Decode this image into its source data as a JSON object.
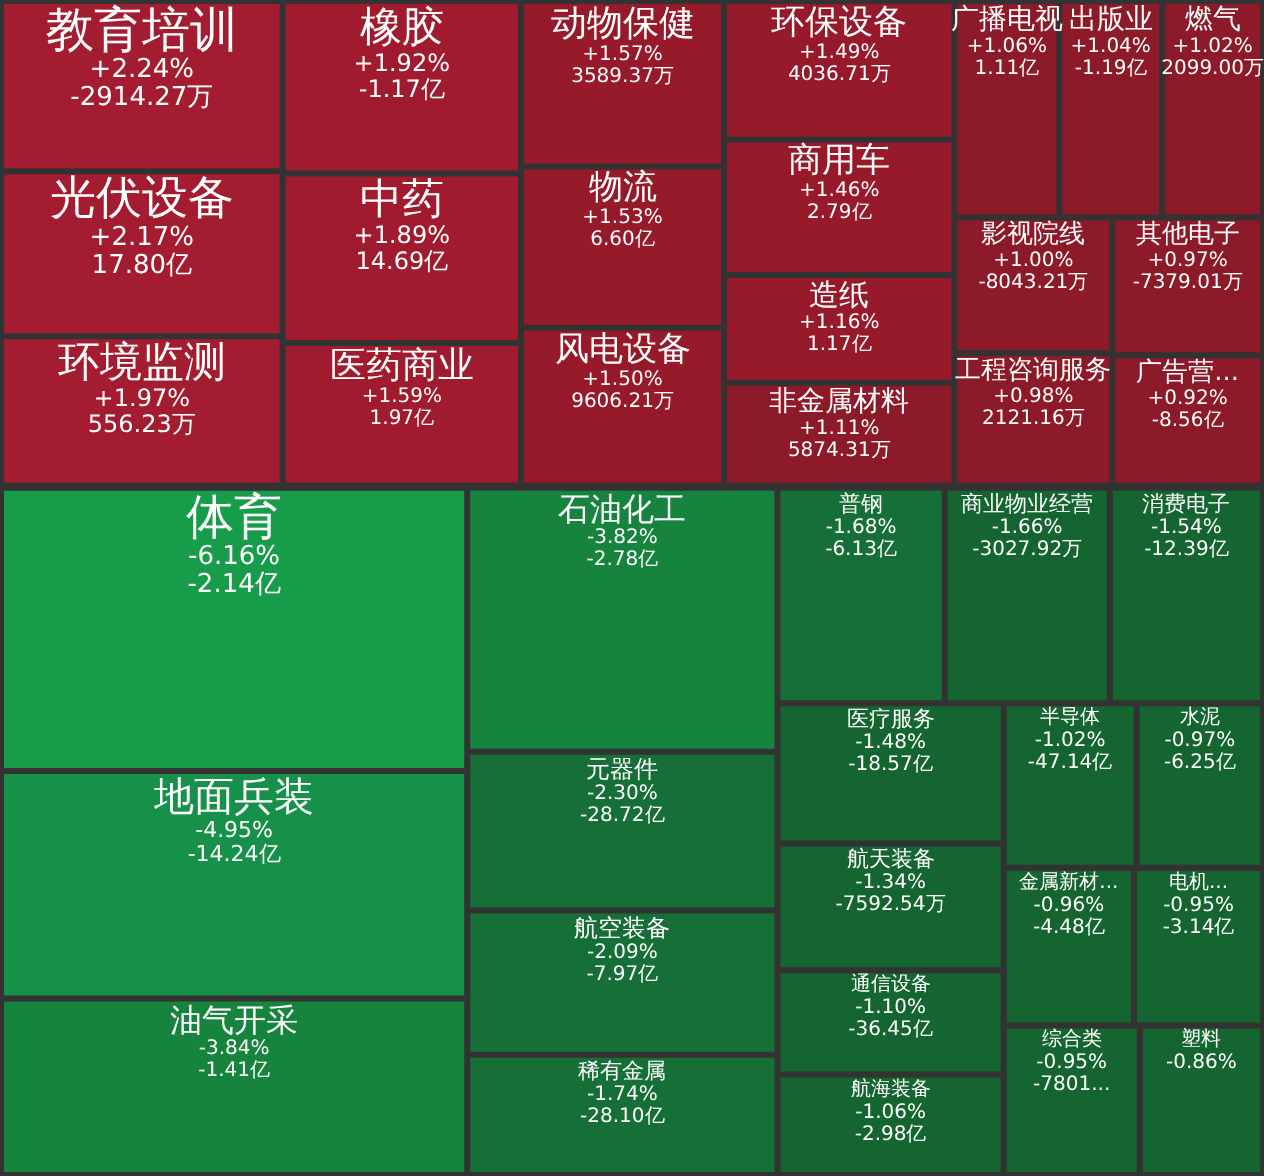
{
  "chart_data": {
    "type": "other",
    "categories": [
      "教育培训",
      "光伏设备",
      "环境监测",
      "橡胶",
      "中药",
      "医药商业",
      "动物保健",
      "物流",
      "风电设备",
      "环保设备",
      "商用车",
      "造纸",
      "非金属材料",
      "燃气",
      "影视院线",
      "广播电视",
      "出版业",
      "工程咨询服务",
      "其他电子",
      "广告营...",
      "体育",
      "地面兵装",
      "油气开采",
      "石油化工",
      "元器件",
      "航空装备",
      "稀有金属",
      "普钢",
      "医疗服务",
      "航天装备",
      "通信设备",
      "商业物业经营",
      "航海装备",
      "水泥",
      "金属新材...",
      "消费电子",
      "半导体",
      "综合类",
      "电机...",
      "塑料"
    ],
    "values": [
      2.24,
      2.17,
      1.97,
      1.92,
      1.89,
      1.59,
      1.57,
      1.53,
      1.5,
      1.49,
      1.46,
      1.16,
      1.11,
      1.02,
      1.0,
      1.06,
      1.04,
      0.98,
      0.97,
      0.92,
      -6.16,
      -4.95,
      -3.84,
      -3.82,
      -2.3,
      -2.09,
      -1.74,
      -1.68,
      -1.48,
      -1.34,
      -1.1,
      -1.66,
      -1.06,
      -0.97,
      -0.96,
      -1.54,
      -1.02,
      -0.95,
      -0.95,
      -0.86
    ],
    "value_labels": [
      "+2.24%",
      "+2.17%",
      "+1.97%",
      "+1.92%",
      "+1.89%",
      "+1.59%",
      "+1.57%",
      "+1.53%",
      "+1.50%",
      "+1.49%",
      "+1.46%",
      "+1.16%",
      "+1.11%",
      "+1.02%",
      "+1.00%",
      "+1.06%",
      "+1.04%",
      "+0.98%",
      "+0.97%",
      "+0.92%",
      "-6.16%",
      "-4.95%",
      "-3.84%",
      "-3.82%",
      "-2.30%",
      "-2.09%",
      "-1.74%",
      "-1.68%",
      "-1.48%",
      "-1.34%",
      "-1.10%",
      "-1.66%",
      "-1.06%",
      "-0.97%",
      "-0.96%",
      "-1.54%",
      "-1.02%",
      "-0.95%",
      "-0.95%",
      "-0.86%"
    ],
    "annotations": [
      "-2914.27万",
      "17.80亿",
      "556.23万",
      "-1.17亿",
      "14.69亿",
      "1.97亿",
      "3589.37万",
      "6.60亿",
      "9606.21万",
      "4036.71万",
      "2.79亿",
      "1.17亿",
      "5874.31万",
      "2099.00万",
      "-8043.21万",
      "1.11亿",
      "-1.19亿",
      "2121.16万",
      "-7379.01万",
      "-8.56亿",
      "-2.14亿",
      "-14.24亿",
      "-1.41亿",
      "-2.78亿",
      "-28.72亿",
      "-7.97亿",
      "-28.10亿",
      "-6.13亿",
      "-18.57亿",
      "-7592.54万",
      "-36.45亿",
      "-3027.92万",
      "-2.98亿",
      "-6.25亿",
      "-4.48亿",
      "-12.39亿",
      "-47.14亿",
      "-7801...",
      "-3.14亿",
      null
    ],
    "colors": [
      "#a31c30",
      "#a31c30",
      "#a31c30",
      "#a01b2d",
      "#a01b2d",
      "#a01b2d",
      "#971a2b",
      "#971a2b",
      "#971a2b",
      "#971a2b",
      "#971a2b",
      "#971a2b",
      "#8c1a28",
      "#8c1a28",
      "#8c1a28",
      "#8c1a28",
      "#8c1a28",
      "#8c1a28",
      "#8c1a28",
      "#8c1a28",
      "#179c4a",
      "#17914a",
      "#17843e",
      "#17843e",
      "#166f36",
      "#166f36",
      "#166f36",
      "#166f36",
      "#14652f",
      "#14652f",
      "#14652f",
      "#14652f",
      "#14652f",
      "#14652f",
      "#14652f",
      "#14652f",
      "#14652f",
      "#14652f",
      "#14652f",
      "#14652f"
    ]
  }
}
